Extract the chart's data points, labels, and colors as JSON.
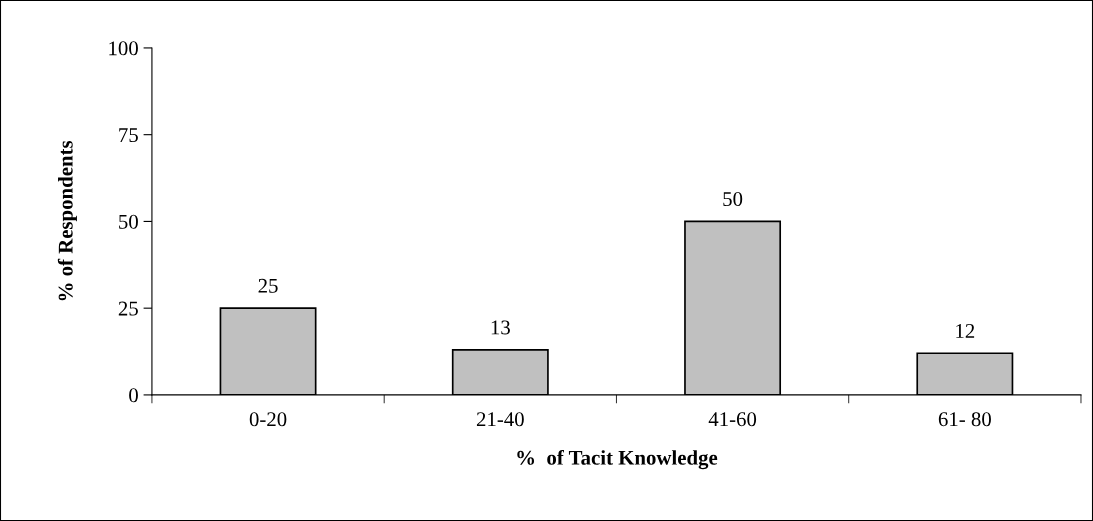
{
  "chart_data": {
    "type": "bar",
    "categories": [
      "0-20",
      "21-40",
      "41-60",
      "61- 80"
    ],
    "values": [
      25,
      13,
      50,
      12
    ],
    "color": "#c0c0c0",
    "xlabel": "%  of Tacit Knowledge",
    "ylabel": "% of Respondents",
    "ylim": [
      0,
      100
    ],
    "yticks": [
      0,
      25,
      50,
      75,
      100
    ],
    "data_labels": true,
    "grid": false
  }
}
